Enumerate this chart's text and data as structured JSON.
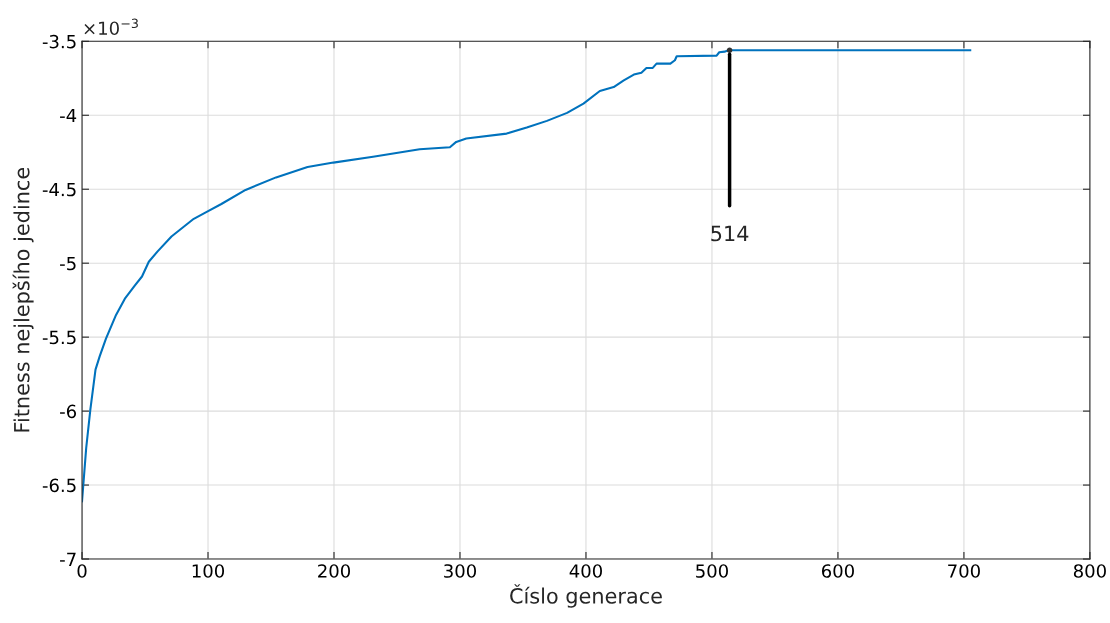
{
  "chart_data": {
    "type": "line",
    "xlabel": "Číslo generace",
    "ylabel": "Fitness nejlepšího jedince",
    "annotations": [
      "×10$^{−3}$",
      {
        "text": "514",
        "x": 514,
        "y": -3.56
      }
    ],
    "series": [
      {
        "color": "#0072bd",
        "x": [
          0,
          3.3,
          6.6,
          10.7,
          14,
          19,
          27,
          34,
          42,
          47.6,
          53,
          60,
          71,
          88.7,
          99.7,
          110.6,
          129.8,
          154,
          179,
          199.5,
          231,
          268,
          292,
          297,
          305,
          337,
          353,
          369,
          385,
          398,
          411,
          422,
          430,
          438,
          444,
          448,
          453,
          456,
          467,
          470.6,
          472,
          503.7,
          505.8,
          510,
          513,
          705
        ],
        "values": [
          -6.61,
          -6.25,
          -5.99,
          -5.72,
          -5.63,
          -5.51,
          -5.35,
          -5.24,
          -5.15,
          -5.09,
          -4.99,
          -4.92,
          -4.82,
          -4.7,
          -4.65,
          -4.6,
          -4.505,
          -4.42,
          -4.35,
          -4.32,
          -4.28,
          -4.23,
          -4.216,
          -4.18,
          -4.157,
          -4.124,
          -4.083,
          -4.038,
          -3.984,
          -3.921,
          -3.836,
          -3.809,
          -3.764,
          -3.725,
          -3.712,
          -3.68,
          -3.68,
          -3.651,
          -3.651,
          -3.628,
          -3.601,
          -3.597,
          -3.574,
          -3.57,
          -3.561,
          -3.561
        ]
      }
    ],
    "xlim": [
      0,
      800
    ],
    "xticks": [
      0,
      100,
      200,
      300,
      400,
      500,
      600,
      700,
      800
    ],
    "ylim": [
      -7,
      -3.5
    ],
    "yticks": [
      -7,
      -6.5,
      -6,
      -5.5,
      -5,
      -4.5,
      -4,
      -3.5
    ],
    "grid": true,
    "legend": false,
    "marker": "none",
    "line_style": "solid"
  }
}
